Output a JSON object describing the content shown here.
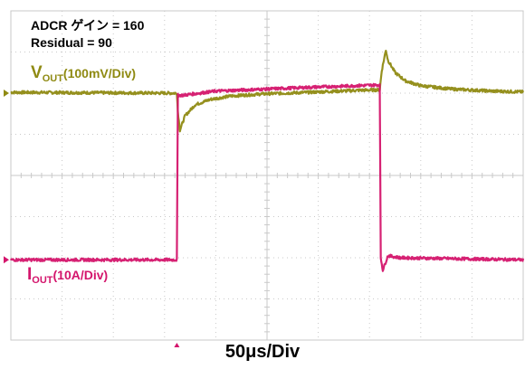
{
  "annotations": {
    "line1": "ADCR ゲイン = 160",
    "line2": "Residual = 90"
  },
  "colors": {
    "vout": "#8f8a12",
    "iout": "#d4156c",
    "grid": "#c9c9c9",
    "grid_minor": "#dcdcdc"
  },
  "chart_data": {
    "type": "line",
    "title": "",
    "xlabel": "50μs/Div",
    "x_unit": "us",
    "xlim": [
      0,
      500
    ],
    "grid": true,
    "divisions": {
      "x": 10,
      "y": 8
    },
    "series": [
      {
        "id": "vout",
        "label_main": "V",
        "label_sub": "OUT",
        "label_scale": "(100mV/Div)",
        "scale_per_div": "100mV",
        "ylim_div": [
          -4,
          4
        ],
        "baseline_div": 2.0,
        "x": [
          0,
          162,
          163,
          165,
          170,
          180,
          195,
          215,
          245,
          290,
          340,
          360,
          362,
          366,
          368,
          375,
          385,
          400,
          430,
          470,
          500
        ],
        "y": [
          2.02,
          2.0,
          1.55,
          1.1,
          1.45,
          1.72,
          1.85,
          1.93,
          1.98,
          2.02,
          2.07,
          2.08,
          2.55,
          3.05,
          2.8,
          2.5,
          2.3,
          2.18,
          2.1,
          2.05,
          2.03
        ]
      },
      {
        "id": "iout",
        "label_main": "I",
        "label_sub": "OUT",
        "label_scale": "(10A/Div)",
        "scale_per_div": "10A",
        "ylim_div": [
          -4,
          4
        ],
        "baseline_div": -2.05,
        "x": [
          0,
          162,
          163,
          168,
          200,
          250,
          300,
          360,
          361,
          363,
          368,
          380,
          500
        ],
        "y": [
          -2.05,
          -2.05,
          1.95,
          1.95,
          2.05,
          2.1,
          2.15,
          2.2,
          -2.0,
          -2.3,
          -1.95,
          -2.0,
          -2.05
        ]
      }
    ]
  }
}
